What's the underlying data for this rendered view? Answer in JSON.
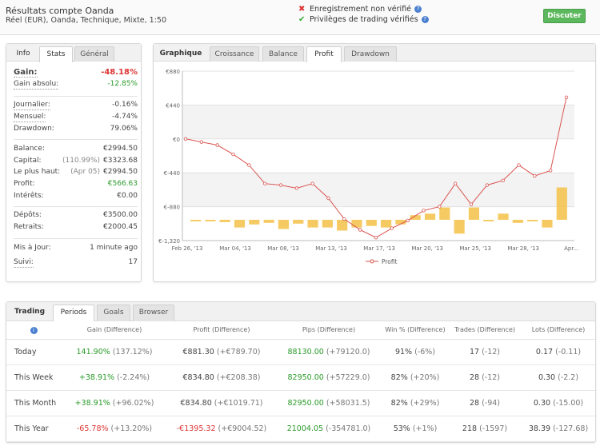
{
  "header": {
    "title": "Résultats compte Oanda",
    "subtitle": "Réel (EUR), Oanda, Technique, Mixte, 1:50",
    "status_unverified": "Enregistrement non vérifié",
    "status_verified": "Privilèges de trading vérifiés",
    "discuss_button": "Discuter"
  },
  "stats": {
    "tabs": [
      "Info",
      "Stats",
      "Général"
    ],
    "gain_label": "Gain:",
    "gain_value": "-48.18%",
    "gain_abs_label": "Gain absolu:",
    "gain_abs_value": "-12.85%",
    "daily_label": "Journalier:",
    "daily_value": "-0.16%",
    "monthly_label": "Mensuel:",
    "monthly_value": "-4.74%",
    "drawdown_label": "Drawdown:",
    "drawdown_value": "79.06%",
    "balance_label": "Balance:",
    "balance_value": "€2994.50",
    "capital_label": "Capital:",
    "capital_pct": "(110.99%)",
    "capital_value": "€3323.68",
    "highest_label": "Le plus haut:",
    "highest_date": "(Apr 05)",
    "highest_value": "€2994.50",
    "profit_label": "Profit:",
    "profit_value": "€566.63",
    "interest_label": "Intérêts:",
    "interest_value": "€0.00",
    "deposits_label": "Dépôts:",
    "deposits_value": "€3500.00",
    "withdrawals_label": "Retraits:",
    "withdrawals_value": "€2000.45",
    "updated_label": "Mis à Jour:",
    "updated_value": "1 minute ago",
    "follow_label": "Suivi:",
    "follow_value": "17"
  },
  "chart_tabs": [
    "Graphique",
    "Croissance",
    "Balance",
    "Profit",
    "Drawdown"
  ],
  "chart_data": {
    "type": "line",
    "x_ticks": [
      "Feb 26, '13",
      "Mar 04, '13",
      "Mar 08, '13",
      "Mar 13, '13",
      "Mar 17, '13",
      "Mar 20, '13",
      "Mar 25, '13",
      "Mar 28, '13",
      "Apr..."
    ],
    "y_ticks": [
      "€880",
      "€440",
      "€0",
      "€-440",
      "€-880",
      "€-1,320"
    ],
    "ylim": [
      -1320,
      880
    ],
    "grid": true,
    "legend": "bottom-center",
    "series": [
      {
        "name": "Profit",
        "color": "#d9534f",
        "values": [
          0,
          -40,
          -80,
          -200,
          -340,
          -580,
          -600,
          -640,
          -580,
          -770,
          -1040,
          -1180,
          -1280,
          -1160,
          -1060,
          -930,
          -880,
          -580,
          -850,
          -600,
          -540,
          -340,
          -480,
          -410,
          540
        ]
      }
    ],
    "bars": {
      "color": "#f5c451",
      "values": [
        -20,
        -20,
        -30,
        -100,
        -60,
        -40,
        -120,
        -50,
        -100,
        -100,
        -140,
        -100,
        -80,
        -100,
        -60,
        60,
        80,
        160,
        -180,
        160,
        -20,
        80,
        -40,
        -20,
        -100,
        420
      ]
    }
  },
  "trading": {
    "tabs": [
      "Trading",
      "Periods",
      "Goals",
      "Browser"
    ],
    "headers": [
      "Gain (Difference)",
      "Profit (Difference)",
      "Pips (Difference)",
      "Win % (Difference)",
      "Trades (Difference)",
      "Lots (Difference)"
    ],
    "info_icon": "i",
    "rows": [
      {
        "period": "Today",
        "gain": "141.90%",
        "gain_diff": "(137.12%)",
        "profit": "€881.30",
        "profit_diff": "(+€789.70)",
        "pips": "88130.00",
        "pips_diff": "(+79120.0)",
        "win": "91%",
        "win_diff": "(-6%)",
        "trades": "17",
        "trades_diff": "(-12)",
        "lots": "0.17",
        "lots_diff": "(-0.11)"
      },
      {
        "period": "This Week",
        "gain": "+38.91%",
        "gain_diff": "(-2.24%)",
        "profit": "€834.80",
        "profit_diff": "(+€208.38)",
        "pips": "82950.00",
        "pips_diff": "(+57229.0)",
        "win": "82%",
        "win_diff": "(+20%)",
        "trades": "28",
        "trades_diff": "(-12)",
        "lots": "0.30",
        "lots_diff": "(-2.2)"
      },
      {
        "period": "This Month",
        "gain": "+38.91%",
        "gain_diff": "(+96.02%)",
        "profit": "€834.80",
        "profit_diff": "(+€1019.71)",
        "pips": "82950.00",
        "pips_diff": "(+58031.5)",
        "win": "82%",
        "win_diff": "(+29%)",
        "trades": "28",
        "trades_diff": "(-94)",
        "lots": "0.30",
        "lots_diff": "(-15.00)"
      },
      {
        "period": "This Year",
        "gain": "-65.78%",
        "gain_diff": "(+13.20%)",
        "profit": "-€1395.32",
        "profit_diff": "(+€9004.52)",
        "pips": "21004.05",
        "pips_diff": "(-354781.0)",
        "win": "53%",
        "win_diff": "(+1%)",
        "trades": "218",
        "trades_diff": "(-1597)",
        "lots": "38.39",
        "lots_diff": "(-127.68)"
      }
    ]
  }
}
